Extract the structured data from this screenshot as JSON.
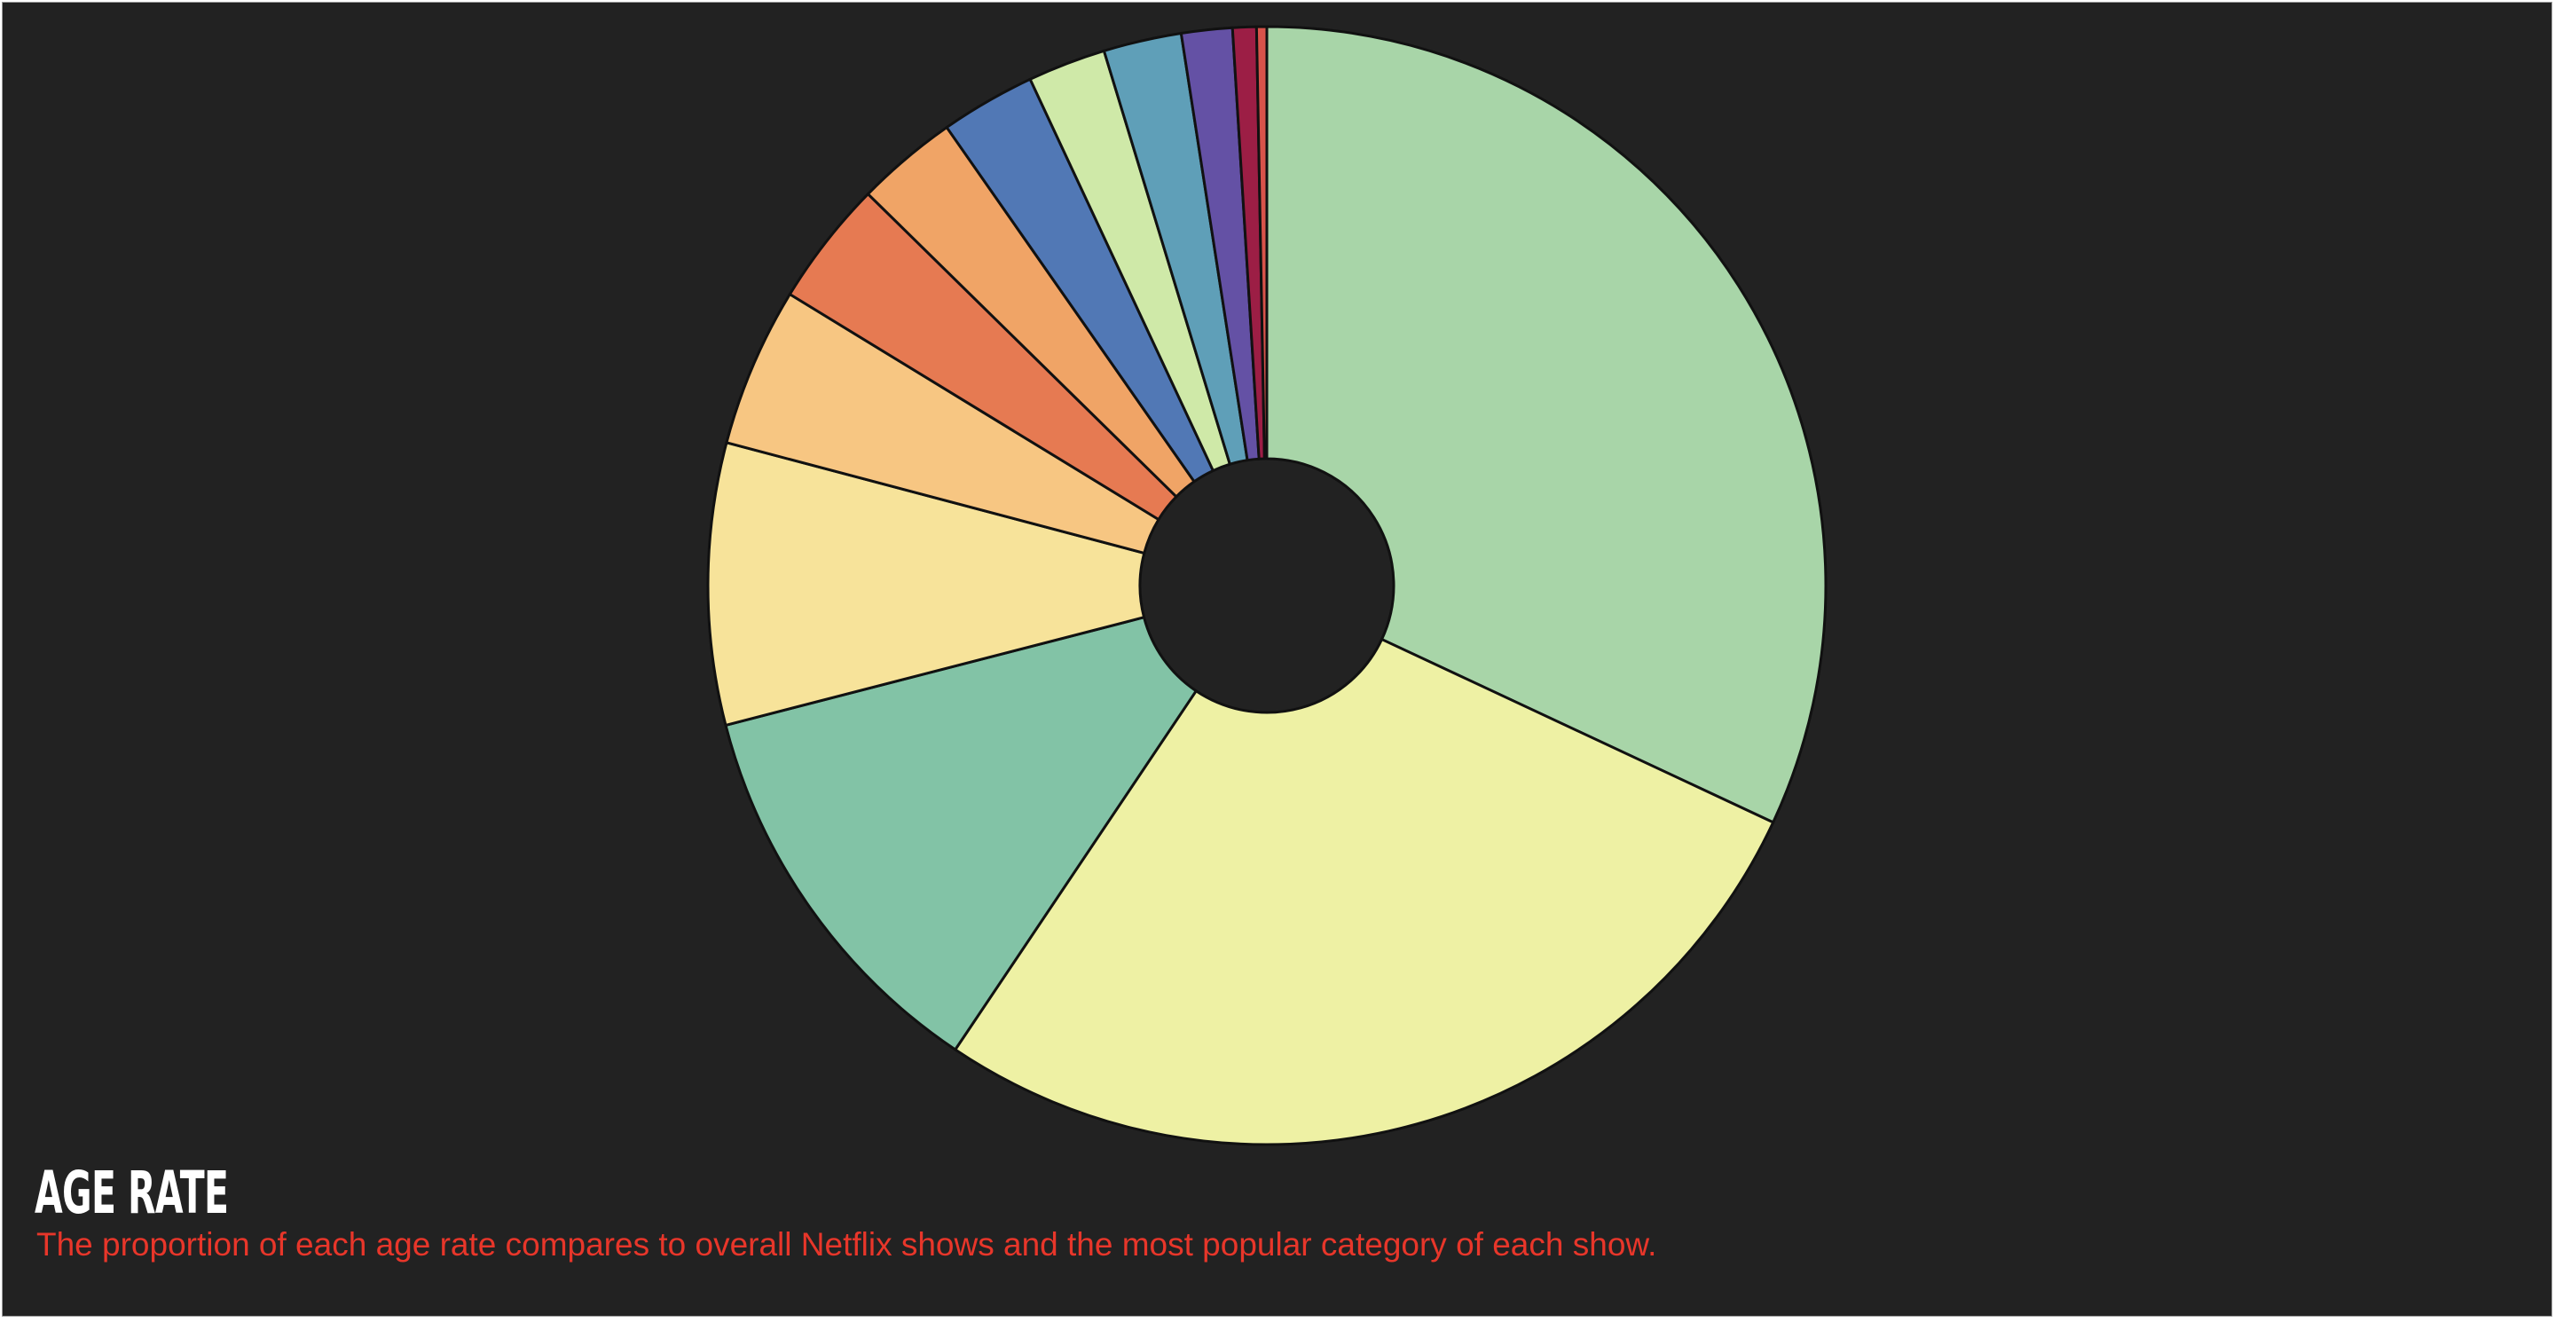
{
  "title": "AGE RATE",
  "subtitle": "The proportion of each age rate compares to overall Netflix shows and the most popular category of each show.",
  "chart_data": {
    "type": "pie",
    "donut": true,
    "values": [
      32.6,
      28.0,
      11.8,
      8.3,
      4.7,
      3.7,
      3.0,
      2.8,
      2.3,
      2.3,
      1.5,
      0.7,
      0.3
    ],
    "colors": [
      "#a8d5a8",
      "#eef1a4",
      "#82c3a6",
      "#f7e39a",
      "#f7c682",
      "#e67a52",
      "#f0a466",
      "#5178b5",
      "#cfe9a8",
      "#5f9fb8",
      "#6451a5",
      "#9c1e45",
      "#d8534a"
    ]
  }
}
